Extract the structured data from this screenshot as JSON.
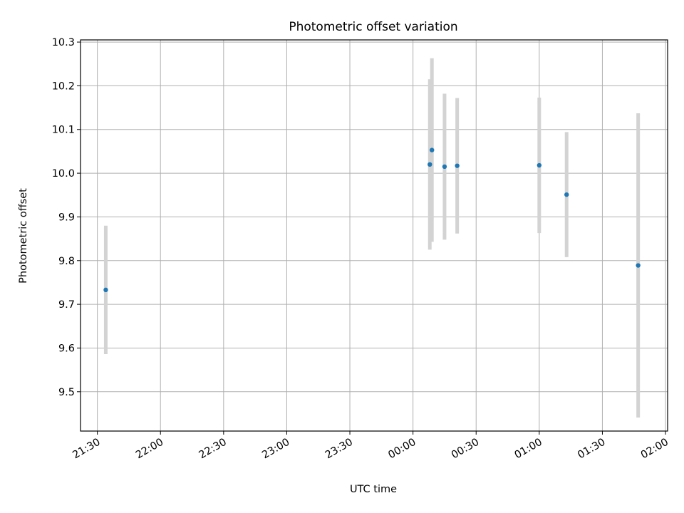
{
  "chart_data": {
    "type": "scatter",
    "title": "Photometric offset variation",
    "xlabel": "UTC time",
    "ylabel": "Photometric offset",
    "x_tick_labels": [
      "21:30",
      "22:00",
      "22:30",
      "23:00",
      "23:30",
      "00:00",
      "00:30",
      "01:00",
      "01:30",
      "02:00"
    ],
    "y_ticks": [
      9.5,
      9.6,
      9.7,
      9.8,
      9.9,
      10.0,
      10.1,
      10.2,
      10.3
    ],
    "y_tick_labels": [
      "9.5",
      "9.6",
      "9.7",
      "9.8",
      "9.9",
      "10.0",
      "10.1",
      "10.2",
      "10.3"
    ],
    "x_range_minutes": [
      -8,
      271
    ],
    "ylim": [
      9.41,
      10.305
    ],
    "grid": true,
    "points_color": "#1f77b4",
    "errorbar_color": "#d3d3d3",
    "series": [
      {
        "points": [
          {
            "time": "21:34",
            "y": 9.733,
            "yerr": 0.147
          },
          {
            "time": "00:08",
            "y": 10.02,
            "yerr": 0.195
          },
          {
            "time": "00:09",
            "y": 10.053,
            "yerr": 0.21
          },
          {
            "time": "00:15",
            "y": 10.015,
            "yerr": 0.167
          },
          {
            "time": "00:21",
            "y": 10.017,
            "yerr": 0.155
          },
          {
            "time": "01:00",
            "y": 10.018,
            "yerr": 0.155
          },
          {
            "time": "01:13",
            "y": 9.951,
            "yerr": 0.143
          },
          {
            "time": "01:47",
            "y": 9.789,
            "yerr": 0.348
          }
        ]
      }
    ]
  }
}
